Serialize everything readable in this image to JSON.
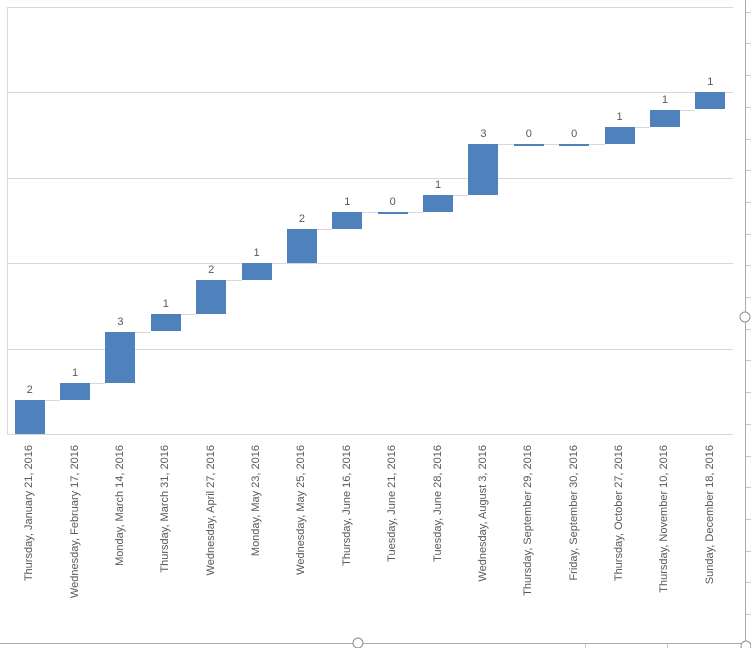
{
  "chart_data": {
    "type": "bar",
    "subtype": "waterfall-cumulative-steps",
    "title": "",
    "xlabel": "",
    "ylabel": "",
    "categories": [
      "Thursday, January 21, 2016",
      "Wednesday, February 17, 2016",
      "Monday, March 14, 2016",
      "Thursday, March 31, 2016",
      "Wednesday, April 27, 2016",
      "Monday, May 23, 2016",
      "Wednesday, May 25, 2016",
      "Thursday, June 16, 2016",
      "Tuesday, June 21, 2016",
      "Tuesday, June 28, 2016",
      "Wednesday, August 3, 2016",
      "Thursday, September 29, 2016",
      "Friday, September 30, 2016",
      "Thursday, October 27, 2016",
      "Thursday, November 10, 2016",
      "Sunday, December 18, 2016"
    ],
    "values": [
      2,
      1,
      3,
      1,
      2,
      1,
      2,
      1,
      0,
      1,
      3,
      0,
      0,
      1,
      1,
      1
    ],
    "data_labels": [
      "2",
      "1",
      "3",
      "1",
      "2",
      "1",
      "2",
      "1",
      "0",
      "1",
      "3",
      "0",
      "0",
      "1",
      "1",
      "1"
    ],
    "cumulative_totals": [
      2,
      3,
      6,
      7,
      9,
      10,
      12,
      13,
      13,
      14,
      17,
      17,
      17,
      18,
      19,
      20
    ],
    "ylim": [
      0,
      25
    ],
    "gridline_values": [
      0,
      5,
      10,
      15,
      20,
      25
    ],
    "grid": "on",
    "legend": "none",
    "colors": {
      "bar": "#4f81bd",
      "gridline": "#d9d9d9",
      "connector": "#d9d9d9",
      "label_text": "#595959",
      "chart_border": "#ababab",
      "sheet_gridline": "#c9c9c9"
    }
  },
  "excel_ui": {
    "selection_handles": [
      "middle-right",
      "bottom-middle",
      "bottom-right-corner"
    ]
  }
}
